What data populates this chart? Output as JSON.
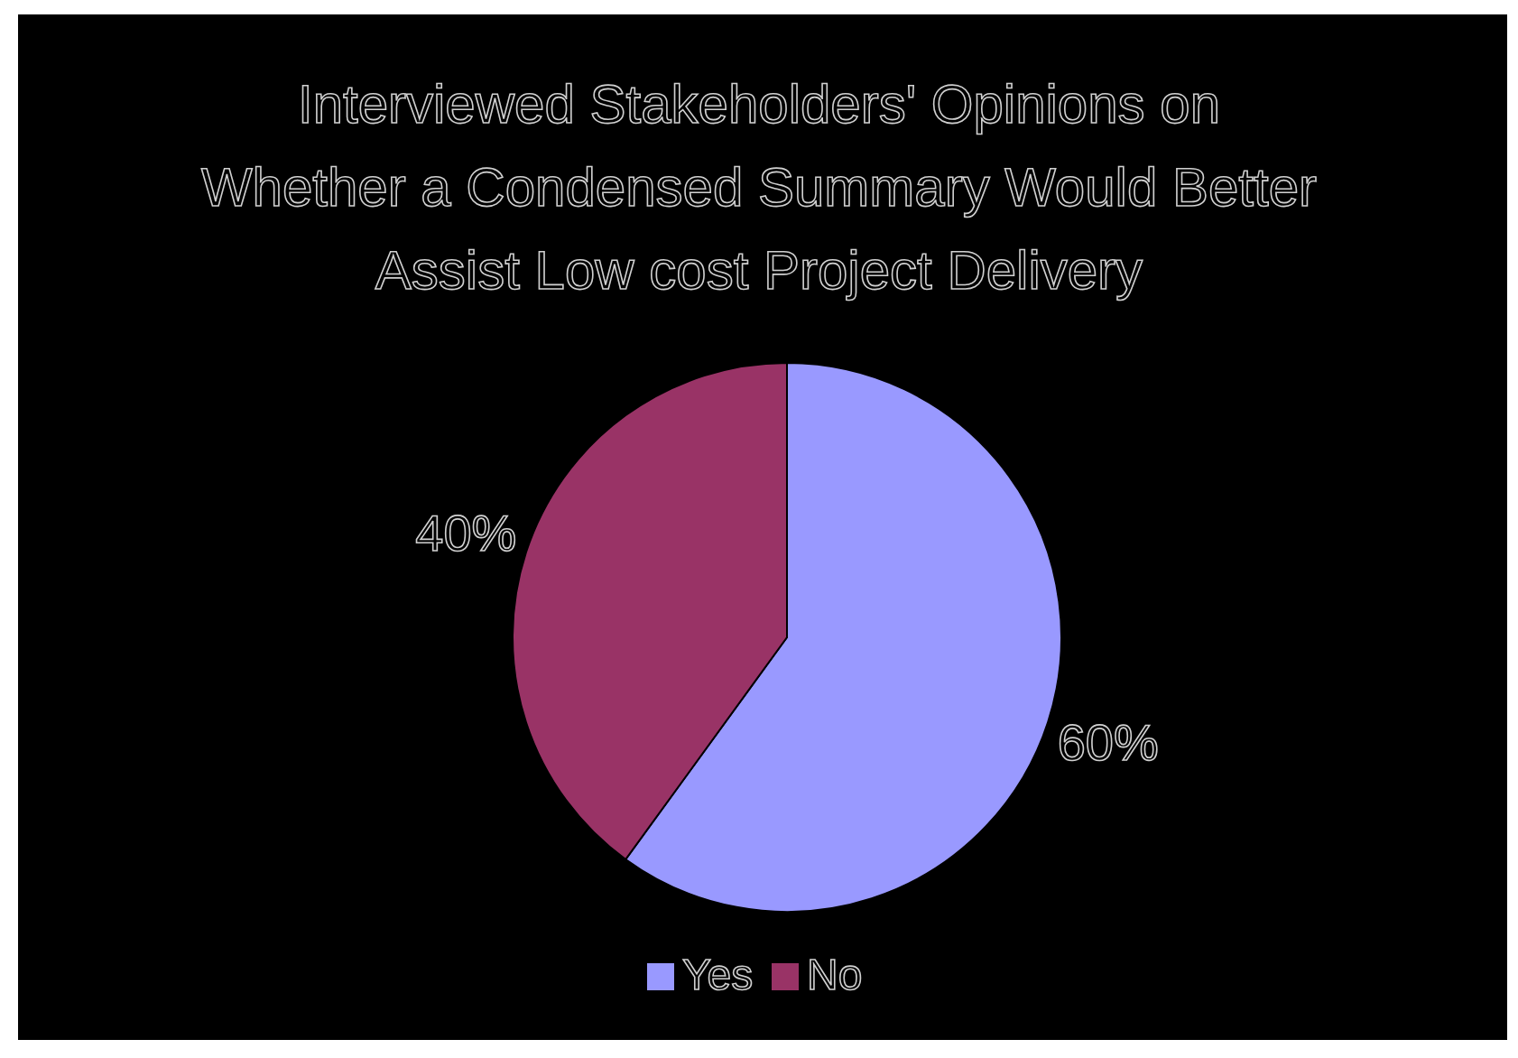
{
  "chart_data": {
    "type": "pie",
    "title": "Interviewed Stakeholders' Opinions on Whether a Condensed Summary Would Better Assist Low cost Project Delivery",
    "categories": [
      "Yes",
      "No"
    ],
    "values": [
      60,
      40
    ],
    "colors": [
      "#9999ff",
      "#993366"
    ],
    "value_labels": [
      "60%",
      "40%"
    ],
    "legend": "bottom"
  }
}
